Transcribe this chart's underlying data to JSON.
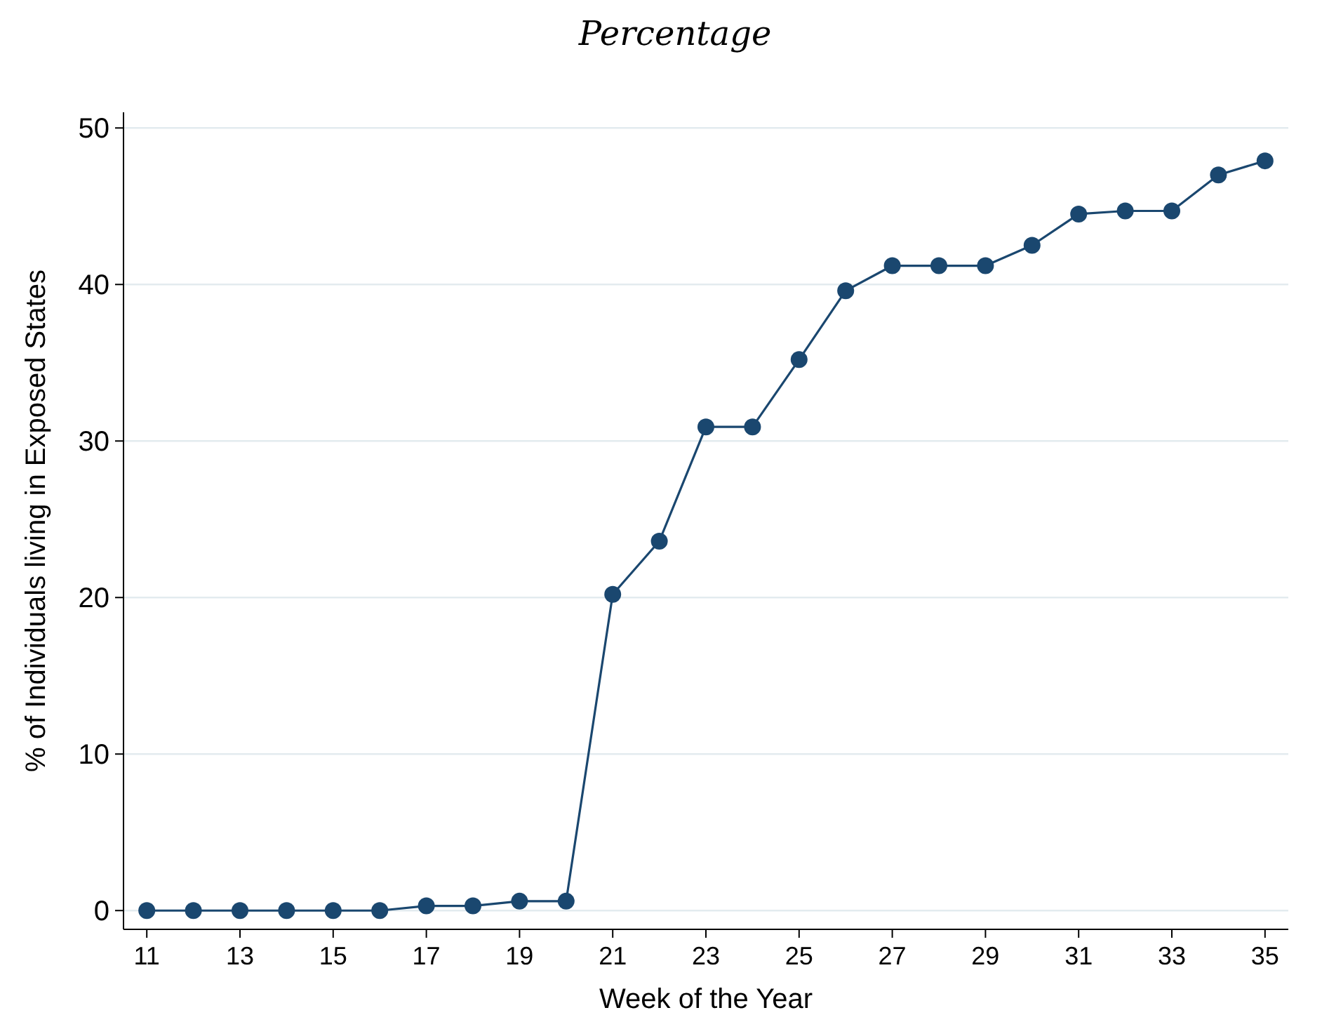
{
  "chart_data": {
    "type": "line",
    "title": "Percentage",
    "xlabel": "Week of the Year",
    "ylabel": "% of Individuals living in Exposed States",
    "x": [
      11,
      12,
      13,
      14,
      15,
      16,
      17,
      18,
      19,
      20,
      21,
      22,
      23,
      24,
      25,
      26,
      27,
      28,
      29,
      30,
      31,
      32,
      33,
      34,
      35
    ],
    "series": [
      {
        "color": "#1a476f",
        "values": [
          0,
          0,
          0,
          0,
          0,
          0,
          0.3,
          0.3,
          0.6,
          0.6,
          20.2,
          23.6,
          30.9,
          30.9,
          35.2,
          39.6,
          41.2,
          41.2,
          41.2,
          42.5,
          44.5,
          44.7,
          44.7,
          47.0,
          47.9
        ]
      }
    ],
    "xlim": [
      10.5,
      35.5
    ],
    "xticks": [
      11,
      13,
      15,
      17,
      19,
      21,
      23,
      25,
      27,
      29,
      31,
      33,
      35
    ],
    "ylim": [
      -1.2,
      51
    ],
    "yticks": [
      0,
      10,
      20,
      30,
      40,
      50
    ],
    "grid": "y",
    "marker": "circle",
    "line_style": "solid"
  }
}
